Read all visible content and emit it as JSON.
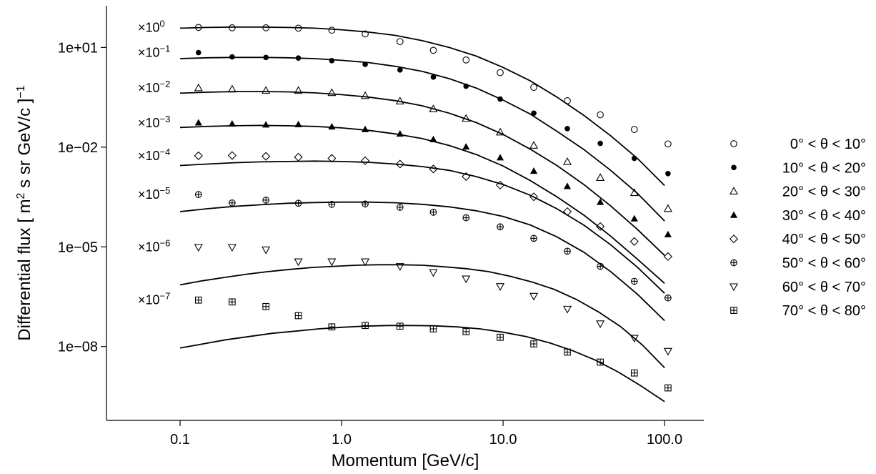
{
  "chart_data": {
    "type": "scatter",
    "xlabel": "Momentum [GeV/c]",
    "ylabel": "Differential flux [ m^2 s sr GeV/c ]^-1",
    "xscale": "log",
    "yscale": "log",
    "xlim": [
      0.035,
      175
    ],
    "ylim": [
      6e-11,
      180
    ],
    "xticks": [
      0.1,
      1,
      10,
      100
    ],
    "xtick_labels": [
      "0.1",
      "1.0",
      "10.0",
      "100.0"
    ],
    "yticks": [
      10,
      0.01,
      1e-05,
      1e-08
    ],
    "ytick_labels": [
      "1e+01",
      "1e−02",
      "1e−05",
      "1e−08"
    ],
    "grid": false,
    "legend_position": "right",
    "x": [
      0.13,
      0.21,
      0.34,
      0.54,
      0.87,
      1.4,
      2.3,
      3.7,
      5.9,
      9.6,
      15.5,
      25,
      40,
      65,
      105
    ],
    "series": [
      {
        "name": "0° < θ < 10°",
        "scale_label": "×10",
        "scale_exp": "0",
        "marker": "open-circle",
        "values": [
          40,
          39,
          39,
          38,
          33,
          25.5,
          15,
          8.2,
          4.2,
          1.75,
          0.63,
          0.25,
          0.094,
          0.034,
          0.0125
        ],
        "fit": [
          38,
          40,
          41,
          41,
          40,
          38,
          34,
          29,
          23,
          16,
          10,
          5.5,
          2.5,
          1.0,
          0.32,
          0.09,
          0.022,
          0.0045,
          0.0007
        ]
      },
      {
        "name": "10° < θ < 20°",
        "scale_label": "×10",
        "scale_exp": "−1",
        "marker": "filled-circle",
        "values": [
          7,
          5.2,
          5.0,
          4.8,
          4.0,
          3.1,
          2.1,
          1.28,
          0.68,
          0.28,
          0.105,
          0.036,
          0.013,
          0.0046,
          0.0016
        ],
        "fit": [
          4.6,
          4.9,
          5.0,
          5.0,
          4.9,
          4.6,
          4.1,
          3.5,
          2.7,
          1.9,
          1.15,
          0.6,
          0.26,
          0.1,
          0.03,
          0.0085,
          0.002,
          0.0004,
          6e-05
        ]
      },
      {
        "name": "20° < θ < 30°",
        "scale_label": "×10",
        "scale_exp": "−2",
        "marker": "open-triangle",
        "values": [
          0.6,
          0.55,
          0.5,
          0.5,
          0.43,
          0.35,
          0.24,
          0.14,
          0.072,
          0.028,
          0.0112,
          0.0036,
          0.0012,
          0.00042,
          0.00014
        ],
        "fit": [
          0.42,
          0.45,
          0.47,
          0.47,
          0.46,
          0.43,
          0.38,
          0.32,
          0.25,
          0.175,
          0.105,
          0.055,
          0.024,
          0.0088,
          0.0028,
          0.00075,
          0.00017,
          3.3e-05,
          5.5e-06
        ]
      },
      {
        "name": "30° < θ < 40°",
        "scale_label": "×10",
        "scale_exp": "−3",
        "marker": "filled-triangle",
        "values": [
          0.054,
          0.05,
          0.047,
          0.048,
          0.041,
          0.034,
          0.025,
          0.017,
          0.0102,
          0.0048,
          0.0019,
          0.00066,
          0.00022,
          7e-05,
          2.35e-05
        ],
        "fit": [
          0.039,
          0.042,
          0.044,
          0.045,
          0.044,
          0.042,
          0.038,
          0.032,
          0.025,
          0.018,
          0.0112,
          0.006,
          0.0027,
          0.001,
          0.00032,
          9e-05,
          2.1e-05,
          4.2e-06,
          8e-07
        ]
      },
      {
        "name": "40° < θ < 50°",
        "scale_label": "×10",
        "scale_exp": "−4",
        "marker": "open-diamond",
        "values": [
          0.0055,
          0.0056,
          0.0053,
          0.005,
          0.0046,
          0.0039,
          0.0031,
          0.0022,
          0.0013,
          0.00072,
          0.00032,
          0.000115,
          4.1e-05,
          1.45e-05,
          5.1e-06
        ],
        "fit": [
          0.0028,
          0.0031,
          0.0034,
          0.0036,
          0.0037,
          0.0038,
          0.0037,
          0.0035,
          0.0031,
          0.0026,
          0.002,
          0.0013,
          0.00075,
          0.00036,
          0.00014,
          4.5e-05,
          1.15e-05,
          2.4e-06,
          4e-07
        ]
      },
      {
        "name": "50° < θ < 60°",
        "scale_label": "×10",
        "scale_exp": "−5",
        "marker": "circle-plus",
        "values": [
          0.000375,
          0.00021,
          0.000255,
          0.000205,
          0.00019,
          0.000195,
          0.000155,
          0.00011,
          7.5e-05,
          4e-05,
          1.8e-05,
          7.4e-06,
          2.6e-06,
          9.2e-07,
          2.9e-07
        ],
        "fit": [
          0.000115,
          0.00014,
          0.000165,
          0.000185,
          0.000205,
          0.000215,
          0.000222,
          0.000222,
          0.000212,
          0.00019,
          0.00016,
          0.000122,
          8.2e-05,
          4.6e-05,
          2e-05,
          6.9e-06,
          1.8e-06,
          3.7e-07,
          6e-08
        ]
      },
      {
        "name": "60° < θ < 70°",
        "scale_label": "×10",
        "scale_exp": "−6",
        "marker": "open-inverted-triangle",
        "values": [
          9.8e-06,
          9.8e-06,
          8.2e-06,
          3.6e-06,
          3.6e-06,
          3.6e-06,
          2.6e-06,
          1.7e-06,
          1.1e-06,
          6.5e-07,
          3.3e-07,
          1.35e-07,
          4.9e-08,
          1.8e-08,
          7.3e-09
        ],
        "fit": [
          7.2e-07,
          9.5e-07,
          1.2e-06,
          1.5e-06,
          1.8e-06,
          2.1e-06,
          2.4e-06,
          2.6e-06,
          2.8e-06,
          2.9e-06,
          2.9e-06,
          2.8e-06,
          2.5e-06,
          2.2e-06,
          1.8e-06,
          1.3e-06,
          8.7e-07,
          5.2e-07,
          2.6e-07,
          1.1e-07,
          4e-08,
          1.1e-08,
          2.3e-09
        ]
      },
      {
        "name": "70° < θ < 80°",
        "scale_label": "×10",
        "scale_exp": "−7",
        "marker": "square-plus",
        "values": [
          2.5e-07,
          2.2e-07,
          1.6e-07,
          8.5e-08,
          3.9e-08,
          4.3e-08,
          4.1e-08,
          3.4e-08,
          2.8e-08,
          1.9e-08,
          1.2e-08,
          6.8e-09,
          3.4e-09,
          1.6e-09,
          5.7e-10
        ],
        "fit": [
          9e-09,
          1.2e-08,
          1.6e-08,
          2e-08,
          2.5e-08,
          2.9e-08,
          3.4e-08,
          3.8e-08,
          4.1e-08,
          4.3e-08,
          4.3e-08,
          4.2e-08,
          3.9e-08,
          3.4e-08,
          2.7e-08,
          2e-08,
          1.3e-08,
          7.6e-09,
          3.9e-09,
          1.7e-09,
          6.4e-10,
          2.2e-10
        ]
      }
    ]
  }
}
